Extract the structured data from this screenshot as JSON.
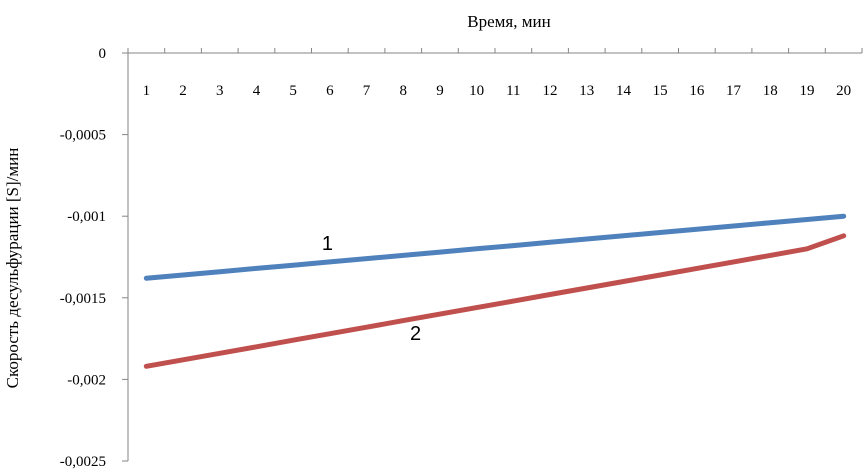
{
  "chart_data": {
    "type": "line",
    "xlabel": "Время, мин",
    "ylabel": "Скорость десульфурации [S]/мин",
    "x": [
      1,
      2,
      3,
      4,
      5,
      6,
      7,
      8,
      9,
      10,
      11,
      12,
      13,
      14,
      15,
      16,
      17,
      18,
      19,
      20
    ],
    "x_tick_labels": [
      "1",
      "2",
      "3",
      "4",
      "5",
      "6",
      "7",
      "8",
      "9",
      "10",
      "11",
      "12",
      "13",
      "14",
      "15",
      "16",
      "17",
      "18",
      "19",
      "20"
    ],
    "ylim": [
      -0.0025,
      0
    ],
    "y_ticks": [
      0,
      -0.0005,
      -0.001,
      -0.0015,
      -0.002,
      -0.0025
    ],
    "y_tick_labels": [
      "0",
      "-0,0005",
      "-0,001",
      "-0,0015",
      "-0,002",
      "-0,0025"
    ],
    "x_axis_position": "top",
    "grid": false,
    "legend": "none",
    "series": [
      {
        "label": "1",
        "color": "#4f81bd",
        "values": [
          -0.00138,
          -0.00136,
          -0.00134,
          -0.00132,
          -0.0013,
          -0.00128,
          -0.00126,
          -0.00124,
          -0.00122,
          -0.0012,
          -0.00118,
          -0.00116,
          -0.00114,
          -0.00112,
          -0.0011,
          -0.00108,
          -0.00106,
          -0.00104,
          -0.00102,
          -0.001
        ]
      },
      {
        "label": "2",
        "color": "#c0504d",
        "values": [
          -0.00192,
          -0.00188,
          -0.00184,
          -0.0018,
          -0.00176,
          -0.00172,
          -0.00168,
          -0.00164,
          -0.0016,
          -0.00156,
          -0.00152,
          -0.00148,
          -0.00144,
          -0.0014,
          -0.00136,
          -0.00132,
          -0.00128,
          -0.00124,
          -0.0012,
          -0.00112
        ]
      }
    ]
  }
}
